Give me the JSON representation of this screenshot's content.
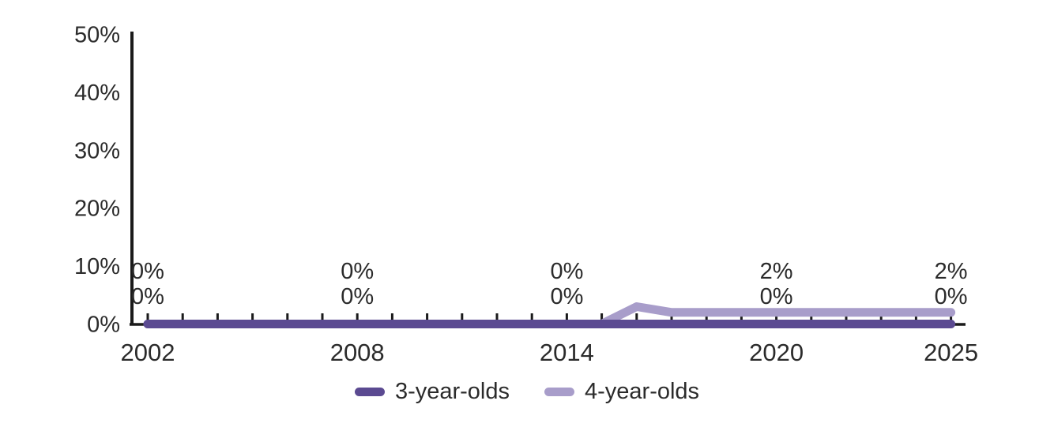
{
  "chart_data": {
    "type": "line",
    "x": [
      2002,
      2003,
      2004,
      2005,
      2006,
      2007,
      2008,
      2009,
      2010,
      2011,
      2012,
      2013,
      2014,
      2015,
      2016,
      2017,
      2018,
      2019,
      2020,
      2021,
      2022,
      2023,
      2024,
      2025
    ],
    "series": [
      {
        "name": "3-year-olds",
        "color": "#5b4a91",
        "values": [
          0,
          0,
          0,
          0,
          0,
          0,
          0,
          0,
          0,
          0,
          0,
          0,
          0,
          0,
          0,
          0,
          0,
          0,
          0,
          0,
          0,
          0,
          0,
          0
        ]
      },
      {
        "name": "4-year-olds",
        "color": "#a89dca",
        "values": [
          0,
          0,
          0,
          0,
          0,
          0,
          0,
          0,
          0,
          0,
          0,
          0,
          0,
          0,
          3,
          2,
          2,
          2,
          2,
          2,
          2,
          2,
          2,
          2
        ]
      }
    ],
    "title": "",
    "xlabel": "",
    "ylabel": "",
    "ylim": [
      0,
      50
    ],
    "yticks": [
      0,
      10,
      20,
      30,
      40,
      50
    ],
    "ytick_labels": [
      "0%",
      "10%",
      "20%",
      "30%",
      "40%",
      "50%"
    ],
    "xticks": [
      2002,
      2008,
      2014,
      2020,
      2025
    ],
    "xtick_labels": [
      "2002",
      "2008",
      "2014",
      "2020",
      "2025"
    ],
    "minor_xticks_every_year": true,
    "grid": false,
    "legend_position": "bottom-center",
    "axis_color": "#1a1a1a",
    "text_color": "#2b2b2b",
    "data_labels": {
      "years": [
        2002,
        2008,
        2014,
        2020,
        2025
      ],
      "rows": [
        {
          "series": "4-year-olds",
          "values": [
            "0%",
            "0%",
            "0%",
            "2%",
            "2%"
          ]
        },
        {
          "series": "3-year-olds",
          "values": [
            "0%",
            "0%",
            "0%",
            "0%",
            "0%"
          ]
        }
      ]
    }
  }
}
